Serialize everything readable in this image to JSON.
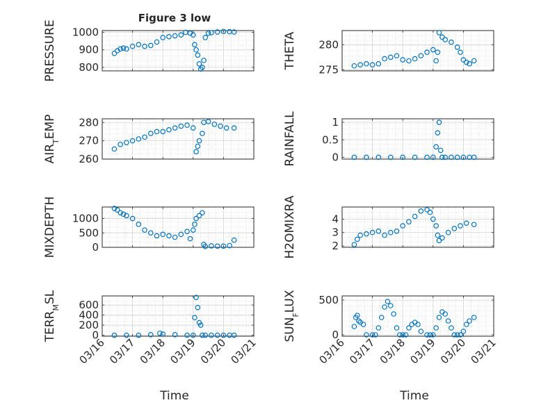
{
  "figure": {
    "title": "Figure 3 low",
    "xlabel": "Time"
  },
  "chart_data": [
    {
      "type": "scatter",
      "ylabel": "PRESSURE",
      "xlim": [
        "03/16",
        "03/21"
      ],
      "ylim": [
        780,
        1010
      ],
      "yticks": [
        {
          "v": 800,
          "t": "800"
        },
        {
          "v": 900,
          "t": "900"
        },
        {
          "v": 1000,
          "t": "1000"
        }
      ],
      "xticks": [
        "03/16",
        "03/17",
        "03/18",
        "03/19",
        "03/20",
        "03/21"
      ],
      "grid": true,
      "marker_color": "#0072BD",
      "series": [
        {
          "x": [
            0.4,
            0.5,
            0.6,
            0.7,
            0.8,
            1.0,
            1.2,
            1.4,
            1.6,
            1.8,
            2.0,
            2.2,
            2.4,
            2.6,
            2.75,
            2.9,
            3.0,
            3.05,
            3.1,
            3.15,
            3.2,
            3.25,
            3.3,
            3.35,
            3.4,
            3.5,
            3.6,
            3.8,
            4.0,
            4.2,
            4.35
          ],
          "y": [
            880,
            895,
            905,
            910,
            905,
            920,
            930,
            920,
            925,
            945,
            970,
            975,
            980,
            985,
            1000,
            995,
            985,
            930,
            900,
            870,
            820,
            790,
            800,
            840,
            970,
            995,
            998,
            1002,
            1005,
            1004,
            1002
          ]
        }
      ]
    },
    {
      "type": "scatter",
      "ylabel": "THETA",
      "xlim": [
        "03/16",
        "03/21"
      ],
      "ylim": [
        274.8,
        282.8
      ],
      "yticks": [
        {
          "v": 275,
          "t": "275"
        },
        {
          "v": 280,
          "t": "280"
        }
      ],
      "xticks": [
        "03/16",
        "03/17",
        "03/18",
        "03/19",
        "03/20",
        "03/21"
      ],
      "grid": true,
      "marker_color": "#0072BD",
      "series": [
        {
          "x": [
            0.4,
            0.6,
            0.8,
            1.0,
            1.2,
            1.4,
            1.6,
            1.8,
            2.0,
            2.2,
            2.4,
            2.6,
            2.8,
            3.0,
            3.1,
            3.15,
            3.2,
            3.3,
            3.4,
            3.6,
            3.8,
            3.9,
            4.0,
            4.1,
            4.2,
            4.35
          ],
          "y": [
            275.8,
            276.0,
            276.2,
            276.0,
            276.2,
            277.2,
            277.5,
            277.8,
            277.0,
            276.8,
            277.2,
            277.8,
            278.5,
            279.0,
            276.8,
            278.5,
            282.4,
            281.5,
            281.0,
            280.5,
            279.5,
            278.5,
            277.0,
            276.5,
            276.2,
            276.8
          ]
        }
      ]
    },
    {
      "type": "scatter",
      "ylabel": "AIR_TEMP",
      "xlim": [
        "03/16",
        "03/21"
      ],
      "ylim": [
        260,
        282
      ],
      "yticks": [
        {
          "v": 260,
          "t": "260"
        },
        {
          "v": 270,
          "t": "270"
        },
        {
          "v": 280,
          "t": "280"
        }
      ],
      "xticks": [
        "03/16",
        "03/17",
        "03/18",
        "03/19",
        "03/20",
        "03/21"
      ],
      "grid": true,
      "marker_color": "#0072BD",
      "series": [
        {
          "x": [
            0.4,
            0.6,
            0.8,
            1.0,
            1.2,
            1.4,
            1.6,
            1.8,
            2.0,
            2.2,
            2.4,
            2.6,
            2.8,
            3.0,
            3.1,
            3.15,
            3.2,
            3.3,
            3.35,
            3.5,
            3.7,
            3.9,
            4.1,
            4.35
          ],
          "y": [
            265.5,
            268,
            269,
            270,
            271,
            272,
            274,
            275,
            275,
            276,
            277,
            278,
            278.5,
            277,
            264,
            267,
            270,
            274,
            280,
            280.5,
            279,
            278,
            277,
            277
          ]
        }
      ]
    },
    {
      "type": "scatter",
      "ylabel": "RAINFALL",
      "xlim": [
        "03/16",
        "03/21"
      ],
      "ylim": [
        -0.05,
        1.1
      ],
      "yticks": [
        {
          "v": 0,
          "t": "0"
        },
        {
          "v": 0.5,
          "t": "0.5"
        },
        {
          "v": 1,
          "t": "1"
        }
      ],
      "xticks": [
        "03/16",
        "03/17",
        "03/18",
        "03/19",
        "03/20",
        "03/21"
      ],
      "grid": true,
      "marker_color": "#0072BD",
      "series": [
        {
          "x": [
            0.4,
            0.8,
            1.2,
            1.6,
            2.0,
            2.4,
            2.8,
            3.0,
            3.1,
            3.15,
            3.2,
            3.25,
            3.3,
            3.4,
            3.6,
            3.8,
            4.0,
            4.2,
            4.35
          ],
          "y": [
            0,
            0,
            0,
            0,
            0,
            0,
            0,
            0,
            0.3,
            0.7,
            1.0,
            0.2,
            0,
            0,
            0,
            0,
            0,
            0,
            0
          ]
        }
      ]
    },
    {
      "type": "scatter",
      "ylabel": "MIXDEPTH",
      "xlim": [
        "03/16",
        "03/21"
      ],
      "ylim": [
        0,
        1400
      ],
      "yticks": [
        {
          "v": 0,
          "t": "0"
        },
        {
          "v": 500,
          "t": "500"
        },
        {
          "v": 1000,
          "t": "1000"
        }
      ],
      "xticks": [
        "03/16",
        "03/17",
        "03/18",
        "03/19",
        "03/20",
        "03/21"
      ],
      "grid": true,
      "marker_color": "#0072BD",
      "series": [
        {
          "x": [
            0.4,
            0.5,
            0.6,
            0.7,
            0.8,
            1.0,
            1.2,
            1.4,
            1.6,
            1.8,
            2.0,
            2.2,
            2.4,
            2.6,
            2.8,
            2.9,
            3.0,
            3.05,
            3.1,
            3.2,
            3.3,
            3.35,
            3.4,
            3.6,
            3.8,
            4.0,
            4.2,
            4.35
          ],
          "y": [
            1350,
            1300,
            1200,
            1150,
            1100,
            1000,
            800,
            600,
            500,
            400,
            450,
            400,
            350,
            450,
            550,
            300,
            600,
            800,
            1000,
            1100,
            1200,
            100,
            30,
            50,
            40,
            40,
            60,
            250
          ]
        }
      ]
    },
    {
      "type": "scatter",
      "ylabel": "H2OMIXRA",
      "xlim": [
        "03/16",
        "03/21"
      ],
      "ylim": [
        1.9,
        4.9
      ],
      "yticks": [
        {
          "v": 2,
          "t": "2"
        },
        {
          "v": 3,
          "t": "3"
        },
        {
          "v": 4,
          "t": "4"
        }
      ],
      "xticks": [
        "03/16",
        "03/17",
        "03/18",
        "03/19",
        "03/20",
        "03/21"
      ],
      "grid": true,
      "marker_color": "#0072BD",
      "series": [
        {
          "x": [
            0.4,
            0.5,
            0.6,
            0.8,
            1.0,
            1.2,
            1.4,
            1.6,
            1.8,
            2.0,
            2.2,
            2.4,
            2.6,
            2.8,
            2.9,
            3.0,
            3.1,
            3.15,
            3.2,
            3.3,
            3.5,
            3.7,
            3.9,
            4.1,
            4.35
          ],
          "y": [
            2.1,
            2.5,
            2.8,
            2.9,
            3.0,
            3.1,
            2.8,
            3.0,
            3.1,
            3.5,
            3.8,
            4.2,
            4.6,
            4.7,
            4.5,
            4.0,
            3.5,
            2.8,
            2.4,
            2.6,
            3.0,
            3.3,
            3.5,
            3.7,
            3.6
          ]
        }
      ]
    },
    {
      "type": "scatter",
      "ylabel": "TERR_MSL",
      "xlim": [
        "03/16",
        "03/21"
      ],
      "ylim": [
        -20,
        780
      ],
      "yticks": [
        {
          "v": 0,
          "t": "0"
        },
        {
          "v": 200,
          "t": "200"
        },
        {
          "v": 400,
          "t": "400"
        },
        {
          "v": 600,
          "t": "600"
        }
      ],
      "xticks": [
        "03/16",
        "03/17",
        "03/18",
        "03/19",
        "03/20",
        "03/21"
      ],
      "grid": true,
      "marker_color": "#0072BD",
      "series": [
        {
          "x": [
            0.4,
            0.8,
            1.2,
            1.6,
            1.9,
            2.0,
            2.4,
            2.8,
            3.0,
            3.05,
            3.1,
            3.15,
            3.2,
            3.25,
            3.3,
            3.4,
            3.6,
            3.8,
            4.0,
            4.2,
            4.35
          ],
          "y": [
            0,
            0,
            0,
            10,
            40,
            20,
            10,
            0,
            0,
            350,
            750,
            550,
            250,
            200,
            0,
            0,
            0,
            0,
            0,
            0,
            0
          ]
        }
      ]
    },
    {
      "type": "scatter",
      "ylabel": "SUN_FLUX",
      "xlim": [
        "03/16",
        "03/21"
      ],
      "ylim": [
        -20,
        560
      ],
      "yticks": [
        {
          "v": 0,
          "t": "0"
        },
        {
          "v": 500,
          "t": "500"
        }
      ],
      "xticks": [
        "03/16",
        "03/17",
        "03/18",
        "03/19",
        "03/20",
        "03/21"
      ],
      "grid": true,
      "marker_color": "#0072BD",
      "series": [
        {
          "x": [
            0.4,
            0.45,
            0.5,
            0.55,
            0.6,
            0.7,
            0.8,
            1.0,
            1.1,
            1.2,
            1.3,
            1.4,
            1.5,
            1.6,
            1.7,
            1.8,
            1.9,
            2.0,
            2.1,
            2.2,
            2.3,
            2.4,
            2.5,
            2.6,
            2.8,
            2.9,
            3.0,
            3.1,
            3.2,
            3.3,
            3.4,
            3.5,
            3.6,
            3.7,
            3.8,
            3.9,
            4.0,
            4.1,
            4.2,
            4.35
          ],
          "y": [
            120,
            250,
            280,
            200,
            180,
            150,
            0,
            0,
            0,
            100,
            250,
            400,
            480,
            420,
            300,
            100,
            0,
            0,
            0,
            100,
            150,
            180,
            150,
            50,
            0,
            0,
            0,
            100,
            250,
            330,
            300,
            200,
            100,
            0,
            0,
            0,
            50,
            150,
            200,
            250
          ]
        }
      ]
    }
  ]
}
